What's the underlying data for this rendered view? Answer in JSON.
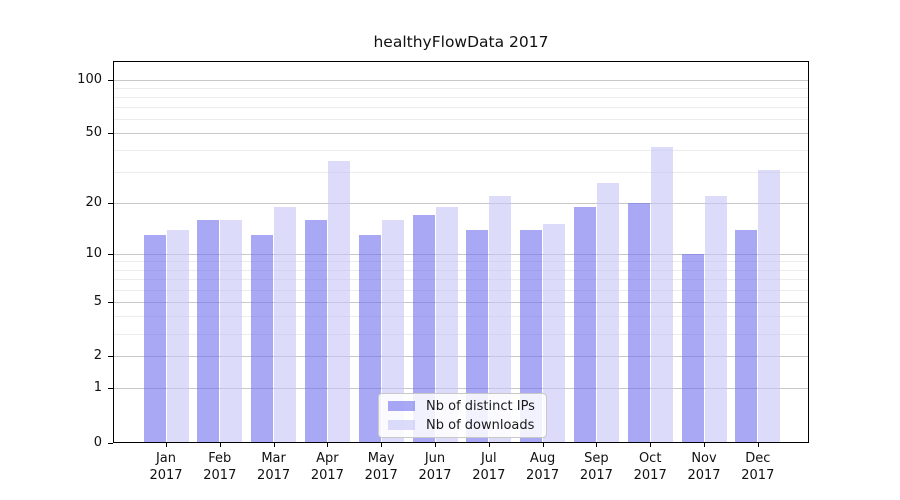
{
  "title": "healthyFlowData 2017",
  "chart_data": {
    "type": "bar",
    "title": "healthyFlowData 2017",
    "categories": [
      "Jan 2017",
      "Feb 2017",
      "Mar 2017",
      "Apr 2017",
      "May 2017",
      "Jun 2017",
      "Jul 2017",
      "Aug 2017",
      "Sep 2017",
      "Oct 2017",
      "Nov 2017",
      "Dec 2017"
    ],
    "series": [
      {
        "name": "Nb of distinct IPs",
        "color": "rgba(110,110,237,0.6)",
        "values": [
          13,
          16,
          13,
          16,
          13,
          17,
          14,
          14,
          19,
          20,
          10,
          14
        ]
      },
      {
        "name": "Nb of downloads",
        "color": "rgba(197,197,247,0.6)",
        "values": [
          14,
          16,
          19,
          35,
          16,
          19,
          22,
          15,
          26,
          42,
          22,
          31
        ]
      }
    ],
    "xlabel": "",
    "ylabel": "",
    "yaxis": {
      "scale": "log10(1+x)",
      "tick_labels": [
        "100",
        "50",
        "20",
        "10",
        "5",
        "2",
        "1",
        "0"
      ],
      "tick_values": [
        100,
        50,
        20,
        10,
        5,
        2,
        1,
        0
      ],
      "minor_gridline_values": [
        90,
        80,
        70,
        60,
        40,
        30,
        9,
        8,
        7,
        6,
        4,
        3
      ],
      "range": [
        0,
        120
      ]
    },
    "grid": "on",
    "legend_position": "inside-bottom-center",
    "colors": {
      "axis": "#000000",
      "major_grid": "#c8c8c8",
      "minor_grid": "#ececec",
      "background": "#ffffff"
    }
  }
}
